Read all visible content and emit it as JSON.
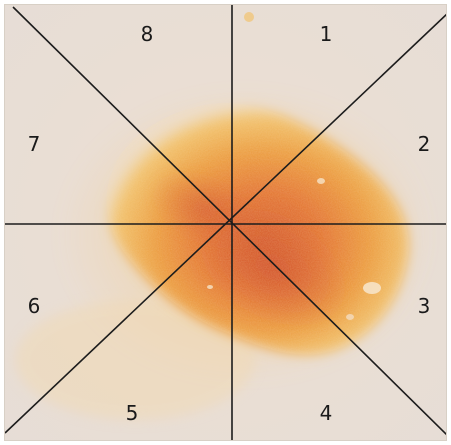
{
  "image": {
    "description_colors": {
      "background": "#ebe0d6",
      "lesion_outer": "#f0b04a",
      "lesion_mid": "#e98f35",
      "lesion_core": "#d4572a",
      "grid_line": "#1c1c1c"
    }
  },
  "sectors": [
    {
      "id": "sector-1",
      "label": "1"
    },
    {
      "id": "sector-2",
      "label": "2"
    },
    {
      "id": "sector-3",
      "label": "3"
    },
    {
      "id": "sector-4",
      "label": "4"
    },
    {
      "id": "sector-5",
      "label": "5"
    },
    {
      "id": "sector-6",
      "label": "6"
    },
    {
      "id": "sector-7",
      "label": "7"
    },
    {
      "id": "sector-8",
      "label": "8"
    }
  ]
}
